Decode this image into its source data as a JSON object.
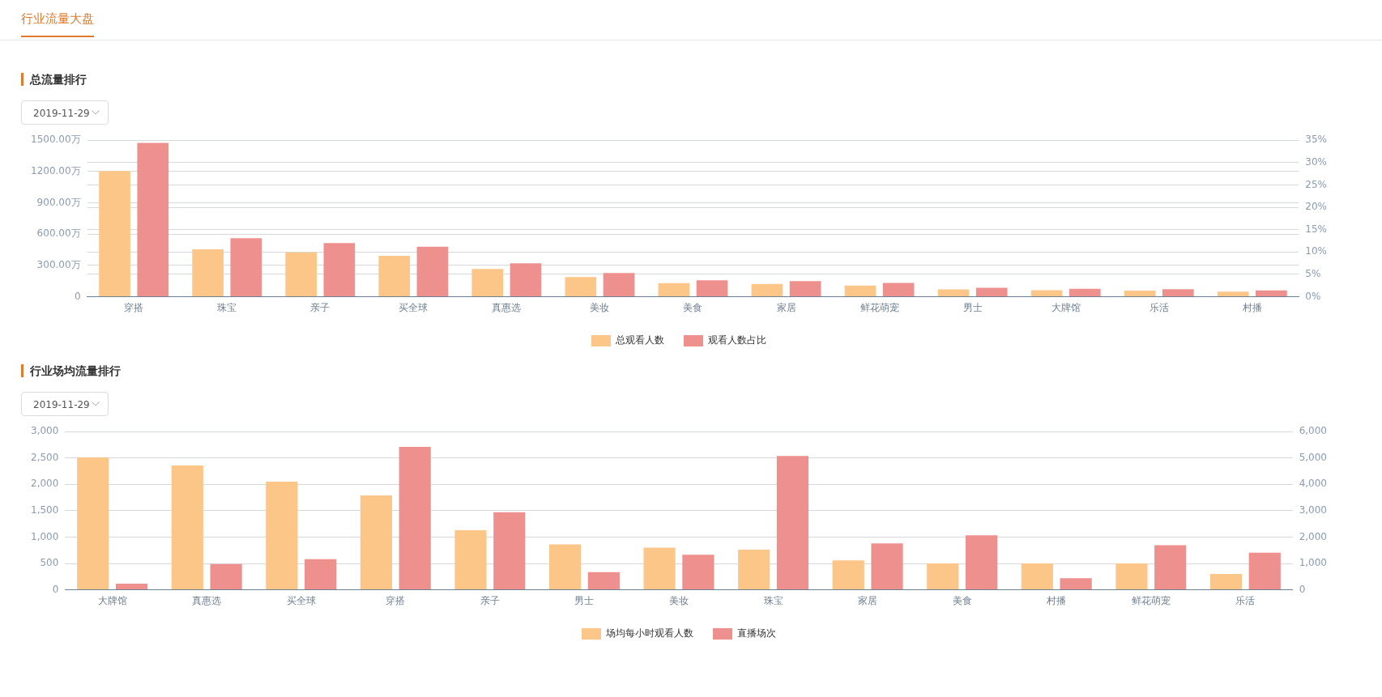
{
  "chart_data": [
    {
      "type": "bar",
      "title": "总流量排行",
      "annotations": [
        "行业流量大盘",
        "2019-11-29"
      ],
      "categories": [
        "穿搭",
        "珠宝",
        "亲子",
        "买全球",
        "真惠选",
        "美妆",
        "美食",
        "家居",
        "鲜花萌宠",
        "男士",
        "大牌馆",
        "乐活",
        "村播"
      ],
      "series": [
        {
          "name": "总观看人数",
          "color": "#fdc689",
          "values": [
            1205,
            454,
            425,
            392,
            266,
            188,
            131,
            123,
            107,
            70,
            62,
            58,
            49
          ]
        },
        {
          "name": "观看人数占比",
          "color": "#ee908e",
          "axis": "y2",
          "values": [
            34.4,
            13.1,
            12.0,
            11.2,
            7.5,
            5.3,
            3.7,
            3.5,
            3.1,
            2.0,
            1.8,
            1.7,
            1.4
          ]
        }
      ],
      "ylim": [
        0,
        1500
      ],
      "yticks": [
        0,
        {
          "value": 300,
          "label": "300.00万"
        },
        {
          "value": 600,
          "label": "600.00万"
        },
        {
          "value": 900,
          "label": "900.00万"
        },
        {
          "value": 1200,
          "label": "1200.00万"
        },
        {
          "value": 1500,
          "label": "1500.00万"
        }
      ],
      "y2lim": [
        0,
        35
      ],
      "y2ticks": [
        {
          "value": 0,
          "label": "0%"
        },
        {
          "value": 5,
          "label": "5%"
        },
        {
          "value": 10,
          "label": "10%"
        },
        {
          "value": 15,
          "label": "15%"
        },
        {
          "value": 20,
          "label": "20%"
        },
        {
          "value": 25,
          "label": "25%"
        },
        {
          "value": 30,
          "label": "30%"
        },
        {
          "value": 35,
          "label": "35%"
        }
      ],
      "grid": true,
      "legend": "bottom"
    },
    {
      "type": "bar",
      "title": "行业场均流量排行",
      "annotations": [
        "2019-11-29"
      ],
      "categories": [
        "大牌馆",
        "真惠选",
        "买全球",
        "穿搭",
        "亲子",
        "男士",
        "美妆",
        "珠宝",
        "家居",
        "美食",
        "村播",
        "鲜花萌宠",
        "乐活"
      ],
      "series": [
        {
          "name": "场均每小时观看人数",
          "color": "#fdc689",
          "values": [
            2510,
            2360,
            2050,
            1790,
            1130,
            860,
            800,
            760,
            560,
            500,
            500,
            500,
            300
          ]
        },
        {
          "name": "直播场次",
          "color": "#ee908e",
          "axis": "y2",
          "values": [
            230,
            980,
            1160,
            5420,
            2940,
            670,
            1330,
            5080,
            1760,
            2070,
            440,
            1690,
            1410
          ]
        }
      ],
      "ylim": [
        0,
        3000
      ],
      "yticks": [
        0,
        {
          "value": 500,
          "label": "500"
        },
        {
          "value": 1000,
          "label": "1,000"
        },
        {
          "value": 1500,
          "label": "1,500"
        },
        {
          "value": 2000,
          "label": "2,000"
        },
        {
          "value": 2500,
          "label": "2,500"
        },
        {
          "value": 3000,
          "label": "3,000"
        }
      ],
      "y2lim": [
        0,
        6000
      ],
      "y2ticks": [
        0,
        {
          "value": 1000,
          "label": "1,000"
        },
        {
          "value": 2000,
          "label": "2,000"
        },
        {
          "value": 3000,
          "label": "3,000"
        },
        {
          "value": 4000,
          "label": "4,000"
        },
        {
          "value": 5000,
          "label": "5,000"
        },
        {
          "value": 6000,
          "label": "6,000"
        }
      ],
      "grid": true,
      "legend": "bottom"
    }
  ]
}
